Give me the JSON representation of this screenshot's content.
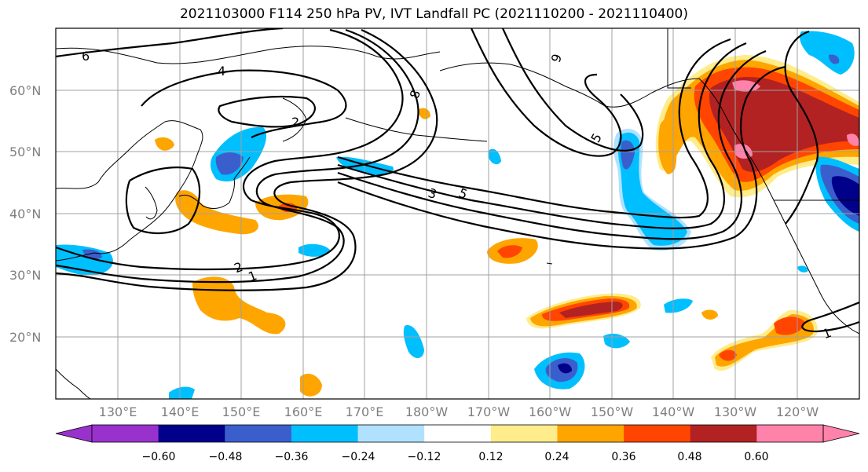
{
  "title": "2021103000 F114 250 hPa PV, IVT Landfall PC (2021110200 - 2021110400)",
  "map": {
    "lat_labels": [
      "60°N",
      "50°N",
      "40°N",
      "30°N",
      "20°N"
    ],
    "lon_labels": [
      "130°E",
      "140°E",
      "150°E",
      "160°E",
      "170°E",
      "180°W",
      "170°W",
      "160°W",
      "150°W",
      "140°W",
      "130°W",
      "120°W"
    ],
    "pv_contour_labels": [
      "6",
      "4",
      "2",
      "8",
      "9",
      "5",
      "3",
      "5",
      "2",
      "1",
      "1"
    ],
    "gridline_color": "#a0a0a0",
    "label_color": "#7f7f7f"
  },
  "colorbar": {
    "ticks": [
      "−0.60",
      "−0.48",
      "−0.36",
      "−0.24",
      "−0.12",
      "0.12",
      "0.24",
      "0.36",
      "0.48",
      "0.60"
    ],
    "colors": [
      "#9932cc",
      "#00008b",
      "#3a5fcd",
      "#00bfff",
      "#b0e2ff",
      "#ffffff",
      "#ffec8b",
      "#ffa500",
      "#ff4500",
      "#b22222",
      "#ff82ab",
      "#ff82ab"
    ]
  },
  "shading_colors": {
    "pos1": "#ffec8b",
    "pos2": "#ffa500",
    "pos3": "#ff4500",
    "pos4": "#b22222",
    "pos5": "#ff82ab",
    "neg1": "#b0e2ff",
    "neg2": "#00bfff",
    "neg3": "#3a5fcd",
    "neg4": "#00008b"
  }
}
